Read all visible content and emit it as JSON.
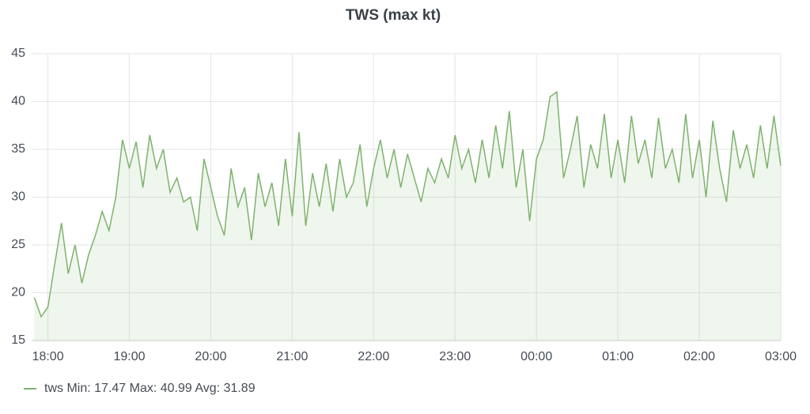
{
  "chart_data": {
    "type": "line",
    "title": "TWS (max kt)",
    "x": [
      "17:50",
      "17:55",
      "18:00",
      "18:05",
      "18:10",
      "18:15",
      "18:20",
      "18:25",
      "18:30",
      "18:35",
      "18:40",
      "18:45",
      "18:50",
      "18:55",
      "19:00",
      "19:05",
      "19:10",
      "19:15",
      "19:20",
      "19:25",
      "19:30",
      "19:35",
      "19:40",
      "19:45",
      "19:50",
      "19:55",
      "20:00",
      "20:05",
      "20:10",
      "20:15",
      "20:20",
      "20:25",
      "20:30",
      "20:35",
      "20:40",
      "20:45",
      "20:50",
      "20:55",
      "21:00",
      "21:05",
      "21:10",
      "21:15",
      "21:20",
      "21:25",
      "21:30",
      "21:35",
      "21:40",
      "21:45",
      "21:50",
      "21:55",
      "22:00",
      "22:05",
      "22:10",
      "22:15",
      "22:20",
      "22:25",
      "22:30",
      "22:35",
      "22:40",
      "22:45",
      "22:50",
      "22:55",
      "23:00",
      "23:05",
      "23:10",
      "23:15",
      "23:20",
      "23:25",
      "23:30",
      "23:35",
      "23:40",
      "23:45",
      "23:50",
      "23:55",
      "00:00",
      "00:05",
      "00:10",
      "00:15",
      "00:20",
      "00:25",
      "00:30",
      "00:35",
      "00:40",
      "00:45",
      "00:50",
      "00:55",
      "01:00",
      "01:05",
      "01:10",
      "01:15",
      "01:20",
      "01:25",
      "01:30",
      "01:35",
      "01:40",
      "01:45",
      "01:50",
      "01:55",
      "02:00",
      "02:05",
      "02:10",
      "02:15",
      "02:20",
      "02:25",
      "02:30",
      "02:35",
      "02:40",
      "02:45",
      "02:50",
      "02:55",
      "03:00"
    ],
    "series": [
      {
        "name": "tws",
        "color": "#7eb26d",
        "values": [
          19.5,
          17.5,
          18.5,
          23,
          27.3,
          22,
          25,
          21,
          24,
          26,
          28.5,
          26.5,
          30,
          36,
          33,
          35.8,
          31,
          36.5,
          33,
          35,
          30.5,
          32,
          29.5,
          30,
          26.5,
          34,
          31,
          28,
          26,
          33,
          29,
          31,
          25.5,
          32.5,
          29,
          31.5,
          27,
          34,
          28,
          36.8,
          27,
          32.5,
          29,
          33.5,
          28.5,
          34,
          30,
          31.5,
          35.5,
          29,
          33,
          36,
          32,
          35,
          31,
          34.5,
          32,
          29.5,
          33,
          31.5,
          34,
          32,
          36.5,
          33,
          35,
          31.5,
          36,
          32,
          37.5,
          33,
          39,
          31,
          35,
          27.5,
          34,
          36,
          40.5,
          41,
          32,
          35,
          38.5,
          31,
          35.5,
          33,
          38.7,
          32,
          36,
          31.5,
          38.5,
          33.5,
          36,
          32,
          38.3,
          33,
          35,
          31.5,
          38.7,
          32,
          36,
          30,
          38,
          33,
          29.5,
          37,
          33,
          35.5,
          32,
          37.5,
          33,
          38.5,
          33.3
        ]
      }
    ],
    "xlim": [
      "17:48",
      "03:00"
    ],
    "xticks": [
      "18:00",
      "19:00",
      "20:00",
      "21:00",
      "22:00",
      "23:00",
      "00:00",
      "01:00",
      "02:00",
      "03:00"
    ],
    "ylim": [
      15,
      45
    ],
    "yticks": [
      15,
      20,
      25,
      30,
      35,
      40,
      45
    ],
    "grid": true,
    "stats": [
      {
        "label": "Min:",
        "value": 17.47
      },
      {
        "label": "Max:",
        "value": 40.99
      },
      {
        "label": "Avg:",
        "value": 31.89
      }
    ]
  }
}
